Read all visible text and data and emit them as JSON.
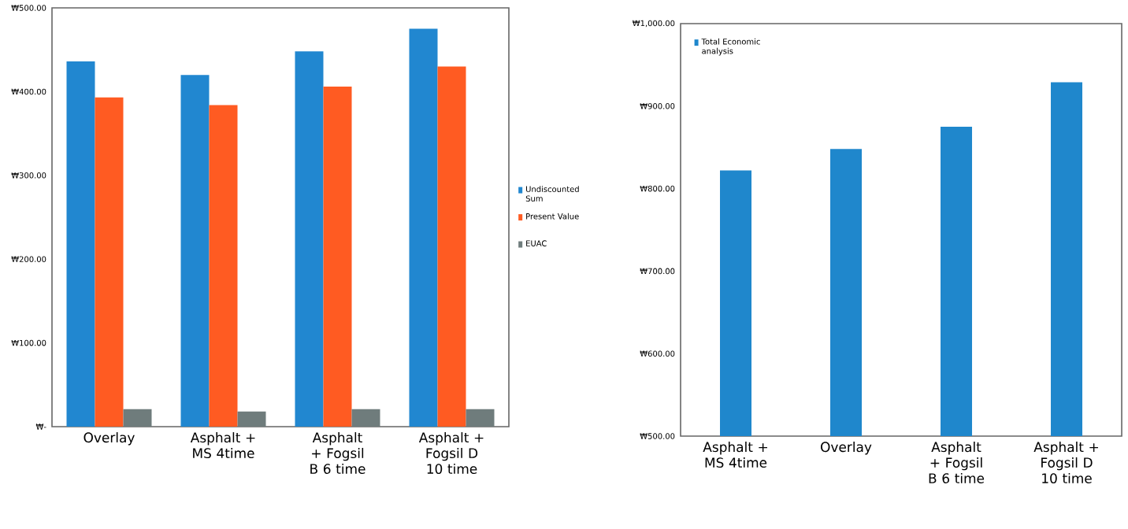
{
  "chart_data": [
    {
      "type": "bar",
      "categories": [
        "Overlay",
        "Asphalt + MS 4time",
        "Asphalt + Fogsil B 6 time",
        "Asphalt + Fogsil D 10 time"
      ],
      "series": [
        {
          "name": "Undiscounted Sum",
          "color": "#2187d0",
          "values": [
            436,
            420,
            448,
            475
          ]
        },
        {
          "name": "Present Value",
          "color": "#ff5b22",
          "values": [
            393,
            384,
            406,
            430
          ]
        },
        {
          "name": "EUAC",
          "color": "#6f7c7c",
          "values": [
            21,
            18,
            21,
            21
          ]
        }
      ],
      "ylim": [
        0,
        500
      ],
      "yticks": [
        {
          "value": 0,
          "label": "₩-"
        },
        {
          "value": 100,
          "label": "₩100.00"
        },
        {
          "value": 200,
          "label": "₩200.00"
        },
        {
          "value": 300,
          "label": "₩300.00"
        },
        {
          "value": 400,
          "label": "₩400.00"
        },
        {
          "value": 500,
          "label": "₩500.00"
        }
      ],
      "legend": "right"
    },
    {
      "type": "bar",
      "categories": [
        "Asphalt + MS 4time",
        "Overlay",
        "Asphalt + Fogsil B 6 time",
        "Asphalt + Fogsil D 10 time"
      ],
      "series": [
        {
          "name": "Total Economic analysis",
          "color": "#1f87cc",
          "values": [
            822,
            848,
            875,
            929
          ]
        }
      ],
      "ylim": [
        500,
        1000
      ],
      "yticks": [
        {
          "value": 500,
          "label": "₩500.00"
        },
        {
          "value": 600,
          "label": "₩600.00"
        },
        {
          "value": 700,
          "label": "₩700.00"
        },
        {
          "value": 800,
          "label": "₩800.00"
        },
        {
          "value": 900,
          "label": "₩900.00"
        },
        {
          "value": 1000,
          "label": "₩1,000.00"
        }
      ],
      "legend": "top left"
    }
  ]
}
